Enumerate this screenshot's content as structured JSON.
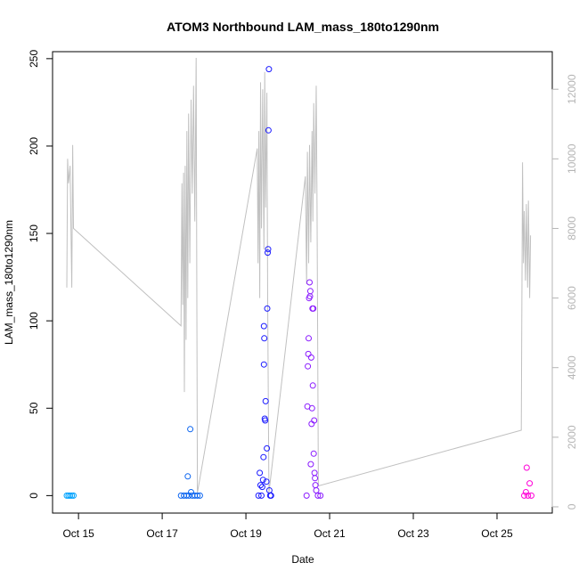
{
  "chart_data": {
    "type": "scatter",
    "title": "ATOM3 Northbound LAM_mass_180to1290nm",
    "xlabel": "Date",
    "ylabel": "LAM_mass_180to1290nm",
    "x_ticks": [
      "Oct 15",
      "Oct 17",
      "Oct 19",
      "Oct 21",
      "Oct 23",
      "Oct 25"
    ],
    "x_tick_days": [
      15,
      17,
      19,
      21,
      23,
      25
    ],
    "xlim": [
      14.38,
      26.32
    ],
    "y_ticks": [
      0,
      50,
      100,
      150,
      200,
      250
    ],
    "ylim": [
      -10,
      254
    ],
    "y2_ticks": [
      0,
      2000,
      4000,
      6000,
      8000,
      10000,
      12000
    ],
    "y2lim": [
      -180,
      13080
    ],
    "y2_color": "#b5b5b5",
    "series": [
      {
        "color": "#00a3ff",
        "points": [
          [
            14.72,
            0
          ],
          [
            14.76,
            0
          ],
          [
            14.8,
            0
          ],
          [
            14.84,
            0
          ],
          [
            14.88,
            0
          ]
        ]
      },
      {
        "color": "#0a64f0",
        "points": [
          [
            17.45,
            0
          ],
          [
            17.52,
            0
          ],
          [
            17.58,
            0
          ],
          [
            17.61,
            11
          ],
          [
            17.64,
            0
          ],
          [
            17.67,
            38
          ],
          [
            17.69,
            2
          ],
          [
            17.72,
            0
          ],
          [
            17.78,
            0
          ],
          [
            17.84,
            0
          ],
          [
            17.9,
            0
          ]
        ]
      },
      {
        "color": "#1a1aff",
        "points": [
          [
            19.3,
            0
          ],
          [
            19.33,
            13
          ],
          [
            19.35,
            6
          ],
          [
            19.37,
            0
          ],
          [
            19.39,
            5
          ],
          [
            19.41,
            9
          ],
          [
            19.42,
            22
          ],
          [
            19.43,
            97
          ],
          [
            19.43,
            75
          ],
          [
            19.44,
            90
          ],
          [
            19.45,
            44
          ],
          [
            19.46,
            43
          ],
          [
            19.47,
            54
          ],
          [
            19.49,
            8
          ],
          [
            19.5,
            27
          ],
          [
            19.51,
            107
          ],
          [
            19.52,
            139
          ],
          [
            19.53,
            141
          ],
          [
            19.54,
            209
          ],
          [
            19.55,
            244
          ],
          [
            19.56,
            3
          ],
          [
            19.58,
            0
          ],
          [
            19.6,
            0
          ]
        ]
      },
      {
        "color": "#8a1aff",
        "points": [
          [
            20.45,
            0
          ],
          [
            20.47,
            51
          ],
          [
            20.48,
            74
          ],
          [
            20.49,
            81
          ],
          [
            20.5,
            90
          ],
          [
            20.51,
            113
          ],
          [
            20.52,
            122
          ],
          [
            20.53,
            114
          ],
          [
            20.54,
            117
          ],
          [
            20.55,
            18
          ],
          [
            20.56,
            79
          ],
          [
            20.57,
            41
          ],
          [
            20.58,
            50
          ],
          [
            20.59,
            107
          ],
          [
            20.6,
            63
          ],
          [
            20.61,
            107
          ],
          [
            20.62,
            24
          ],
          [
            20.63,
            43
          ],
          [
            20.64,
            13
          ],
          [
            20.65,
            10
          ],
          [
            20.66,
            6
          ],
          [
            20.68,
            3
          ],
          [
            20.72,
            0
          ],
          [
            20.78,
            0
          ]
        ]
      },
      {
        "color": "#ff00d8",
        "points": [
          [
            25.65,
            0
          ],
          [
            25.69,
            2
          ],
          [
            25.71,
            16
          ],
          [
            25.74,
            0
          ],
          [
            25.78,
            7
          ],
          [
            25.82,
            0
          ]
        ]
      }
    ],
    "line_series": {
      "color": "#c0c0c0",
      "axis": "right",
      "points": [
        [
          14.72,
          6300
        ],
        [
          14.74,
          10000
        ],
        [
          14.76,
          9300
        ],
        [
          14.8,
          9800
        ],
        [
          14.84,
          6300
        ],
        [
          14.86,
          10400
        ],
        [
          14.88,
          8000
        ],
        [
          17.45,
          5200
        ],
        [
          17.47,
          9300
        ],
        [
          17.49,
          5800
        ],
        [
          17.51,
          9600
        ],
        [
          17.53,
          3300
        ],
        [
          17.55,
          9800
        ],
        [
          17.57,
          4800
        ],
        [
          17.59,
          10800
        ],
        [
          17.61,
          6000
        ],
        [
          17.63,
          11300
        ],
        [
          17.66,
          7000
        ],
        [
          17.69,
          11700
        ],
        [
          17.72,
          9000
        ],
        [
          17.75,
          12100
        ],
        [
          17.78,
          8200
        ],
        [
          17.81,
          12900
        ],
        [
          17.84,
          400
        ],
        [
          19.27,
          10300
        ],
        [
          19.29,
          7000
        ],
        [
          19.31,
          10800
        ],
        [
          19.33,
          6000
        ],
        [
          19.35,
          12200
        ],
        [
          19.37,
          8000
        ],
        [
          19.4,
          12000
        ],
        [
          19.43,
          7400
        ],
        [
          19.45,
          12500
        ],
        [
          19.47,
          8600
        ],
        [
          19.5,
          11900
        ],
        [
          19.52,
          5900
        ],
        [
          19.55,
          400
        ],
        [
          20.42,
          9500
        ],
        [
          20.45,
          6400
        ],
        [
          20.47,
          10200
        ],
        [
          20.5,
          7000
        ],
        [
          20.52,
          10400
        ],
        [
          20.55,
          7600
        ],
        [
          20.58,
          10800
        ],
        [
          20.6,
          8200
        ],
        [
          20.62,
          11600
        ],
        [
          20.65,
          9000
        ],
        [
          20.68,
          12100
        ],
        [
          20.7,
          8700
        ],
        [
          20.73,
          600
        ],
        [
          25.58,
          2200
        ],
        [
          25.61,
          9900
        ],
        [
          25.63,
          7000
        ],
        [
          25.65,
          8500
        ],
        [
          25.68,
          6500
        ],
        [
          25.7,
          8700
        ],
        [
          25.73,
          6300
        ],
        [
          25.75,
          8800
        ],
        [
          25.78,
          6000
        ],
        [
          25.8,
          7800
        ]
      ]
    }
  }
}
